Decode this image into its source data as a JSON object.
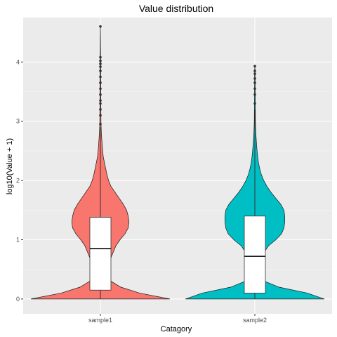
{
  "chart_data": {
    "type": "violin",
    "title": "Value distribution",
    "xlabel": "Catagory",
    "ylabel": "log10(Value + 1)",
    "ylim": [
      -0.25,
      4.75
    ],
    "yticks": [
      0,
      1,
      2,
      3,
      4
    ],
    "grid": true,
    "legend": "none",
    "categories": [
      "sample1",
      "sample2"
    ],
    "series": [
      {
        "category": "sample1",
        "color": "#F8766D",
        "box": {
          "q1": 0.15,
          "median": 0.85,
          "q3": 1.38,
          "whisker_low": 0.0,
          "whisker_high": 2.9
        },
        "outliers": [
          2.95,
          3.1,
          3.2,
          3.3,
          3.35,
          3.45,
          3.55,
          3.65,
          3.75,
          3.85,
          3.92,
          3.97,
          4.02,
          4.08,
          4.6
        ],
        "density": [
          [
            0.0,
            0.85
          ],
          [
            0.1,
            0.48
          ],
          [
            0.2,
            0.25
          ],
          [
            0.3,
            0.13
          ],
          [
            0.4,
            0.1
          ],
          [
            0.5,
            0.1
          ],
          [
            0.6,
            0.11
          ],
          [
            0.7,
            0.13
          ],
          [
            0.8,
            0.16
          ],
          [
            0.9,
            0.19
          ],
          [
            1.0,
            0.24
          ],
          [
            1.1,
            0.3
          ],
          [
            1.2,
            0.34
          ],
          [
            1.3,
            0.35
          ],
          [
            1.4,
            0.34
          ],
          [
            1.5,
            0.32
          ],
          [
            1.6,
            0.28
          ],
          [
            1.7,
            0.23
          ],
          [
            1.8,
            0.18
          ],
          [
            1.9,
            0.13
          ],
          [
            2.0,
            0.1
          ],
          [
            2.1,
            0.08
          ],
          [
            2.2,
            0.065
          ],
          [
            2.3,
            0.05
          ],
          [
            2.4,
            0.035
          ],
          [
            2.5,
            0.028
          ],
          [
            2.6,
            0.022
          ],
          [
            2.7,
            0.017
          ],
          [
            2.8,
            0.012
          ],
          [
            2.9,
            0.009
          ],
          [
            3.0,
            0.007
          ],
          [
            3.2,
            0.006
          ],
          [
            3.4,
            0.005
          ],
          [
            3.6,
            0.005
          ],
          [
            3.8,
            0.004
          ],
          [
            4.0,
            0.003
          ],
          [
            4.2,
            0.002
          ],
          [
            4.4,
            0.001
          ],
          [
            4.6,
            0.0
          ]
        ]
      },
      {
        "category": "sample2",
        "color": "#00BFC4",
        "box": {
          "q1": 0.1,
          "median": 0.72,
          "q3": 1.4,
          "whisker_low": 0.0,
          "whisker_high": 3.2
        },
        "outliers": [
          3.3,
          3.45,
          3.55,
          3.65,
          3.72,
          3.8,
          3.85,
          3.93
        ],
        "density": [
          [
            0.0,
            0.86
          ],
          [
            0.1,
            0.65
          ],
          [
            0.2,
            0.3
          ],
          [
            0.3,
            0.12
          ],
          [
            0.4,
            0.09
          ],
          [
            0.5,
            0.085
          ],
          [
            0.6,
            0.09
          ],
          [
            0.7,
            0.1
          ],
          [
            0.8,
            0.12
          ],
          [
            0.9,
            0.17
          ],
          [
            1.0,
            0.26
          ],
          [
            1.1,
            0.33
          ],
          [
            1.2,
            0.36
          ],
          [
            1.3,
            0.37
          ],
          [
            1.4,
            0.37
          ],
          [
            1.5,
            0.36
          ],
          [
            1.6,
            0.32
          ],
          [
            1.7,
            0.26
          ],
          [
            1.8,
            0.2
          ],
          [
            1.9,
            0.15
          ],
          [
            2.0,
            0.11
          ],
          [
            2.1,
            0.08
          ],
          [
            2.2,
            0.06
          ],
          [
            2.3,
            0.045
          ],
          [
            2.4,
            0.035
          ],
          [
            2.5,
            0.028
          ],
          [
            2.6,
            0.022
          ],
          [
            2.7,
            0.017
          ],
          [
            2.8,
            0.012
          ],
          [
            2.9,
            0.009
          ],
          [
            3.0,
            0.007
          ],
          [
            3.2,
            0.006
          ],
          [
            3.4,
            0.005
          ],
          [
            3.6,
            0.004
          ],
          [
            3.8,
            0.003
          ],
          [
            3.93,
            0.0
          ]
        ]
      }
    ]
  }
}
